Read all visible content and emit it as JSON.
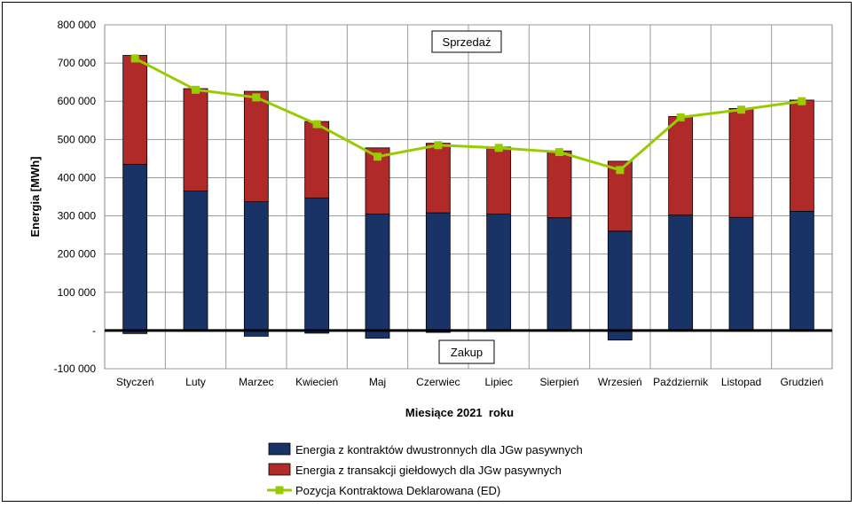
{
  "chart_data": {
    "type": "bar",
    "stacked": true,
    "categories": [
      "Styczeń",
      "Luty",
      "Marzec",
      "Kwiecień",
      "Maj",
      "Czerwiec",
      "Lipiec",
      "Sierpień",
      "Wrzesień",
      "Październik",
      "Listopad",
      "Grudzień"
    ],
    "series": [
      {
        "name": "Energia z kontraktów dwustronnych dla JGw pasywnych",
        "type": "bar",
        "color": "#1a3366",
        "values": [
          435000,
          365000,
          337000,
          347000,
          305000,
          308000,
          305000,
          295000,
          260000,
          302000,
          296000,
          312000
        ],
        "negative_values": [
          -8000,
          0,
          -15000,
          -7000,
          -20000,
          -5000,
          0,
          0,
          -25000,
          0,
          0,
          0
        ]
      },
      {
        "name": "Energia z transakcji giełdowych dla JGw pasywnych",
        "type": "bar",
        "color": "#b02a2a",
        "values": [
          285000,
          268000,
          289000,
          200000,
          173000,
          182000,
          175000,
          175000,
          183000,
          258000,
          285000,
          291000
        ]
      },
      {
        "name": "Pozycja Kontraktowa Deklarowana (ED)",
        "type": "line",
        "color": "#99cc00",
        "values": [
          712000,
          630000,
          610000,
          540000,
          455000,
          485000,
          478000,
          467000,
          420000,
          558000,
          578000,
          600000
        ]
      }
    ],
    "xlabel": "Miesiące 2021  roku",
    "ylabel": "Energia [MWh]",
    "ylim": [
      -100000,
      800000
    ],
    "yticks": [
      -100000,
      0,
      100000,
      200000,
      300000,
      400000,
      500000,
      600000,
      700000,
      800000
    ],
    "ytick_labels": [
      "-100 000",
      "-",
      "100 000",
      "200 000",
      "300 000",
      "400 000",
      "500 000",
      "600 000",
      "700 000",
      "800 000"
    ],
    "grid": true,
    "legend_position": "bottom",
    "annotations": [
      "Sprzedaż",
      "Zakup"
    ]
  }
}
